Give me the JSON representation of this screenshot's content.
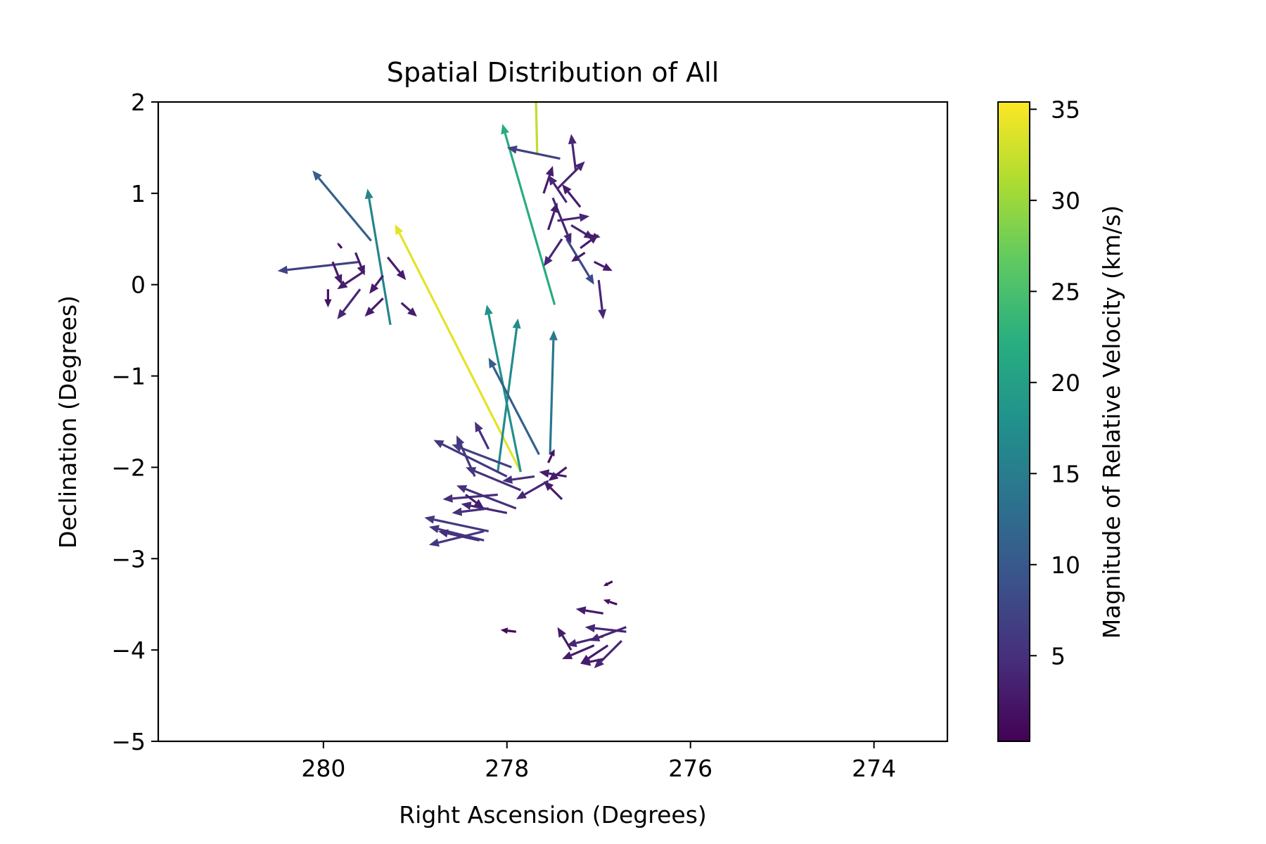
{
  "chart_data": {
    "type": "quiver",
    "title": "Spatial Distribution of All",
    "xlabel": "Right Ascension (Degrees)",
    "ylabel": "Declination (Degrees)",
    "xlim": [
      281.8,
      273.2
    ],
    "ylim": [
      -5,
      2
    ],
    "x_inverted": true,
    "xticks": [
      280,
      278,
      276,
      274
    ],
    "yticks": [
      2,
      1,
      0,
      -1,
      -2,
      -3,
      -4,
      -5
    ],
    "xtick_labels": [
      "280",
      "278",
      "276",
      "274"
    ],
    "ytick_labels": [
      "2",
      "1",
      "0",
      "−1",
      "−2",
      "−3",
      "−4",
      "−5"
    ],
    "grid": false,
    "colorbar": {
      "label": "Magnitude of Relative Velocity (km/s)",
      "range": [
        0.3,
        35.4
      ],
      "ticks": [
        5,
        10,
        15,
        20,
        25,
        30,
        35
      ],
      "tick_labels": [
        "5",
        "10",
        "15",
        "20",
        "25",
        "30",
        "35"
      ],
      "colormap": "viridis"
    },
    "vectors": [
      {
        "x": 279.48,
        "y": 0.48,
        "x2": 280.12,
        "y2": 1.25,
        "speed": 11
      },
      {
        "x": 279.27,
        "y": -0.44,
        "x2": 279.52,
        "y2": 1.05,
        "speed": 16
      },
      {
        "x": 277.85,
        "y": -2.05,
        "x2": 279.22,
        "y2": 0.66,
        "speed": 34
      },
      {
        "x": 277.67,
        "y": 1.42,
        "x2": 277.69,
        "y2": 2.3,
        "speed": 32
      },
      {
        "x": 277.48,
        "y": -0.22,
        "x2": 278.05,
        "y2": 1.76,
        "speed": 22
      },
      {
        "x": 277.85,
        "y": -2.05,
        "x2": 278.22,
        "y2": -0.22,
        "speed": 18
      },
      {
        "x": 278.1,
        "y": -2.05,
        "x2": 277.88,
        "y2": -0.37,
        "speed": 17
      },
      {
        "x": 277.53,
        "y": -1.86,
        "x2": 277.49,
        "y2": -0.5,
        "speed": 14
      },
      {
        "x": 277.65,
        "y": -1.86,
        "x2": 278.2,
        "y2": -0.8,
        "speed": 11
      },
      {
        "x": 277.42,
        "y": 1.38,
        "x2": 278.0,
        "y2": 1.5,
        "speed": 7
      },
      {
        "x": 279.6,
        "y": 0.25,
        "x2": 280.5,
        "y2": 0.15,
        "speed": 7
      },
      {
        "x": 277.35,
        "y": 0.5,
        "x2": 277.05,
        "y2": 0.0,
        "speed": 8
      },
      {
        "x": 277.25,
        "y": 1.25,
        "x2": 277.3,
        "y2": 1.65,
        "speed": 4
      },
      {
        "x": 277.45,
        "y": 1.05,
        "x2": 277.15,
        "y2": 1.35,
        "speed": 4
      },
      {
        "x": 277.6,
        "y": 1.0,
        "x2": 277.5,
        "y2": 1.3,
        "speed": 3
      },
      {
        "x": 277.35,
        "y": 0.9,
        "x2": 277.55,
        "y2": 1.2,
        "speed": 4
      },
      {
        "x": 277.2,
        "y": 0.85,
        "x2": 277.4,
        "y2": 1.1,
        "speed": 3
      },
      {
        "x": 277.45,
        "y": 0.7,
        "x2": 277.1,
        "y2": 0.75,
        "speed": 4
      },
      {
        "x": 277.3,
        "y": 0.65,
        "x2": 277.05,
        "y2": 0.5,
        "speed": 4
      },
      {
        "x": 277.4,
        "y": 0.5,
        "x2": 277.6,
        "y2": 0.2,
        "speed": 4
      },
      {
        "x": 277.2,
        "y": 0.4,
        "x2": 277.0,
        "y2": 0.55,
        "speed": 3
      },
      {
        "x": 277.05,
        "y": 0.25,
        "x2": 276.85,
        "y2": 0.15,
        "speed": 3
      },
      {
        "x": 277.0,
        "y": 0.05,
        "x2": 276.95,
        "y2": -0.38,
        "speed": 4
      },
      {
        "x": 277.5,
        "y": 0.95,
        "x2": 277.3,
        "y2": 0.45,
        "speed": 4
      },
      {
        "x": 277.55,
        "y": 0.6,
        "x2": 277.45,
        "y2": 0.9,
        "speed": 3
      },
      {
        "x": 277.15,
        "y": 0.35,
        "x2": 277.3,
        "y2": 0.25,
        "speed": 3
      },
      {
        "x": 277.15,
        "y": 0.55,
        "x2": 276.98,
        "y2": 0.52,
        "speed": 3
      },
      {
        "x": 279.9,
        "y": 0.25,
        "x2": 279.8,
        "y2": 0.0,
        "speed": 3
      },
      {
        "x": 279.65,
        "y": 0.35,
        "x2": 279.55,
        "y2": 0.1,
        "speed": 3
      },
      {
        "x": 279.3,
        "y": 0.3,
        "x2": 279.1,
        "y2": 0.05,
        "speed": 3
      },
      {
        "x": 279.55,
        "y": 0.15,
        "x2": 279.85,
        "y2": -0.05,
        "speed": 3
      },
      {
        "x": 279.6,
        "y": -0.05,
        "x2": 279.85,
        "y2": -0.38,
        "speed": 4
      },
      {
        "x": 279.35,
        "y": -0.15,
        "x2": 279.55,
        "y2": -0.35,
        "speed": 3
      },
      {
        "x": 279.35,
        "y": 0.1,
        "x2": 279.5,
        "y2": -0.1,
        "speed": 3
      },
      {
        "x": 279.15,
        "y": -0.2,
        "x2": 278.98,
        "y2": -0.35,
        "speed": 3
      },
      {
        "x": 279.95,
        "y": -0.05,
        "x2": 279.95,
        "y2": -0.25,
        "speed": 2
      },
      {
        "x": 279.8,
        "y": 0.4,
        "x2": 279.85,
        "y2": 0.46,
        "speed": 1
      },
      {
        "x": 277.95,
        "y": -2.0,
        "x2": 278.6,
        "y2": -1.75,
        "speed": 7
      },
      {
        "x": 278.0,
        "y": -2.1,
        "x2": 278.8,
        "y2": -1.7,
        "speed": 6
      },
      {
        "x": 277.7,
        "y": -2.1,
        "x2": 278.05,
        "y2": -2.15,
        "speed": 5
      },
      {
        "x": 277.85,
        "y": -2.25,
        "x2": 278.45,
        "y2": -2.0,
        "speed": 5
      },
      {
        "x": 277.9,
        "y": -2.45,
        "x2": 278.55,
        "y2": -2.2,
        "speed": 5
      },
      {
        "x": 278.35,
        "y": -2.1,
        "x2": 278.55,
        "y2": -1.65,
        "speed": 6
      },
      {
        "x": 278.1,
        "y": -2.3,
        "x2": 278.7,
        "y2": -2.35,
        "speed": 5
      },
      {
        "x": 278.0,
        "y": -2.5,
        "x2": 278.5,
        "y2": -2.4,
        "speed": 4
      },
      {
        "x": 278.2,
        "y": -1.8,
        "x2": 278.35,
        "y2": -1.5,
        "speed": 5
      },
      {
        "x": 278.2,
        "y": -2.45,
        "x2": 278.6,
        "y2": -2.5,
        "speed": 5
      },
      {
        "x": 278.2,
        "y": -2.7,
        "x2": 278.9,
        "y2": -2.55,
        "speed": 6
      },
      {
        "x": 278.25,
        "y": -2.8,
        "x2": 278.85,
        "y2": -2.65,
        "speed": 6
      },
      {
        "x": 278.25,
        "y": -2.7,
        "x2": 278.85,
        "y2": -2.85,
        "speed": 6
      },
      {
        "x": 278.3,
        "y": -2.8,
        "x2": 278.75,
        "y2": -2.7,
        "speed": 5
      },
      {
        "x": 278.45,
        "y": -2.3,
        "x2": 278.25,
        "y2": -2.45,
        "speed": 3
      },
      {
        "x": 277.35,
        "y": -2.0,
        "x2": 277.55,
        "y2": -2.15,
        "speed": 3
      },
      {
        "x": 277.35,
        "y": -2.1,
        "x2": 277.65,
        "y2": -2.05,
        "speed": 3
      },
      {
        "x": 277.4,
        "y": -2.35,
        "x2": 277.6,
        "y2": -2.15,
        "speed": 3
      },
      {
        "x": 277.55,
        "y": -2.15,
        "x2": 277.9,
        "y2": -2.35,
        "speed": 4
      },
      {
        "x": 277.55,
        "y": -1.95,
        "x2": 277.48,
        "y2": -1.8,
        "speed": 2
      },
      {
        "x": 276.7,
        "y": -3.75,
        "x2": 277.1,
        "y2": -3.9,
        "speed": 4
      },
      {
        "x": 276.7,
        "y": -3.8,
        "x2": 277.15,
        "y2": -3.75,
        "speed": 4
      },
      {
        "x": 276.75,
        "y": -3.9,
        "x2": 277.05,
        "y2": -4.2,
        "speed": 4
      },
      {
        "x": 276.9,
        "y": -3.95,
        "x2": 277.2,
        "y2": -4.15,
        "speed": 3
      },
      {
        "x": 276.95,
        "y": -3.85,
        "x2": 277.35,
        "y2": -3.95,
        "speed": 4
      },
      {
        "x": 277.05,
        "y": -3.95,
        "x2": 277.4,
        "y2": -4.1,
        "speed": 3
      },
      {
        "x": 276.95,
        "y": -4.1,
        "x2": 277.2,
        "y2": -4.15,
        "speed": 3
      },
      {
        "x": 277.3,
        "y": -4.0,
        "x2": 277.45,
        "y2": -3.75,
        "speed": 3
      },
      {
        "x": 276.95,
        "y": -3.6,
        "x2": 277.25,
        "y2": -3.55,
        "speed": 3
      },
      {
        "x": 276.8,
        "y": -3.5,
        "x2": 276.95,
        "y2": -3.45,
        "speed": 2
      },
      {
        "x": 276.85,
        "y": -3.25,
        "x2": 276.95,
        "y2": -3.3,
        "speed": 1
      },
      {
        "x": 277.9,
        "y": -3.8,
        "x2": 278.07,
        "y2": -3.78,
        "speed": 1
      }
    ]
  }
}
